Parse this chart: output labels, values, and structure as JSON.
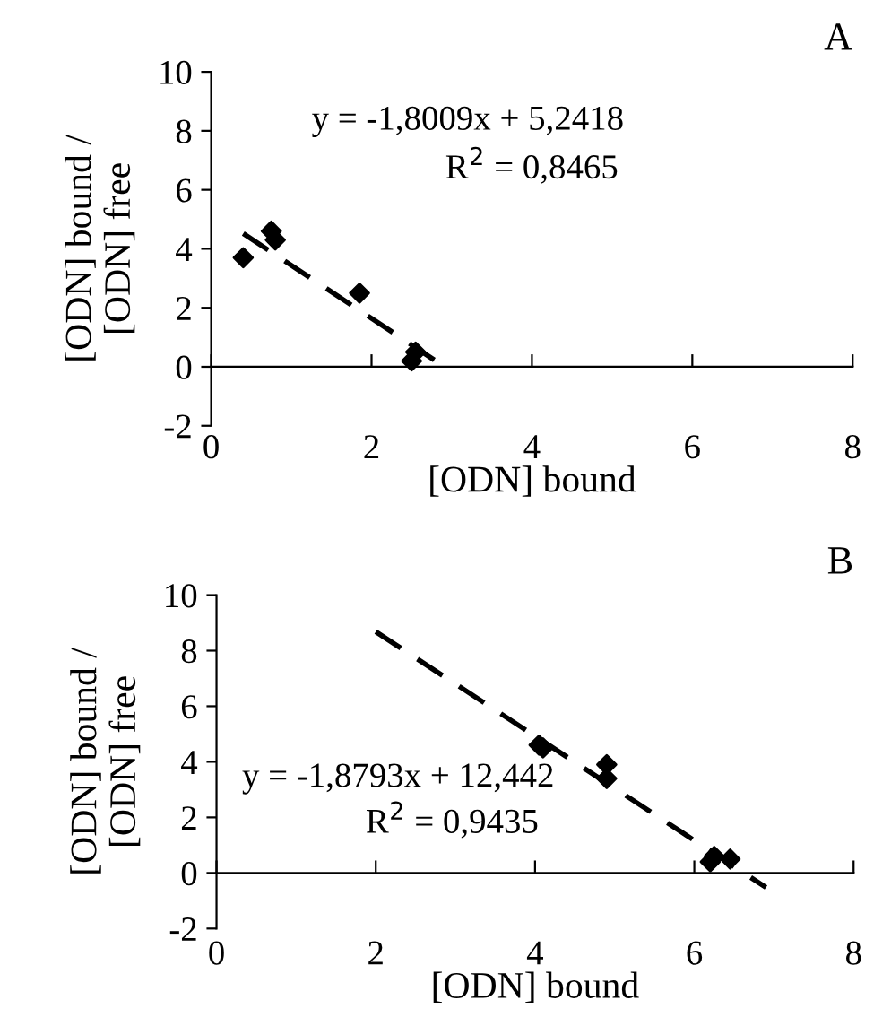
{
  "chart_data": [
    {
      "type": "scatter",
      "title": "A",
      "xlabel": "[ODN] bound",
      "ylabel": "[ODN] bound /\n[ODN] free",
      "annotations": [
        "y = -1,8009x + 5,2418",
        "R$^{2}$ = 0,8465"
      ],
      "xlim": [
        0,
        8
      ],
      "ylim": [
        -2,
        10
      ],
      "xticks": [
        0,
        2,
        4,
        6,
        8
      ],
      "yticks": [
        -2,
        0,
        2,
        4,
        6,
        8,
        10
      ],
      "grid": false,
      "legend": false,
      "marker": "diamond",
      "series": [
        {
          "color": "#000000",
          "x": [
            0.4,
            0.75,
            0.8,
            1.85,
            2.5,
            2.55
          ],
          "values": [
            3.7,
            4.6,
            4.3,
            2.5,
            0.2,
            0.5
          ]
        },
        {
          "type": "line",
          "line_style": "dashed",
          "marker": "none",
          "color": "#000000",
          "x": [
            0.4,
            2.95
          ],
          "values": [
            4.52,
            -0.07
          ]
        }
      ]
    },
    {
      "type": "scatter",
      "title": "B",
      "xlabel": "[ODN] bound",
      "ylabel": "[ODN] bound /\n[ODN] free",
      "annotations": [
        "y = -1,8793x + 12,442",
        "R$^{2}$ = 0,9435"
      ],
      "xlim": [
        0,
        8
      ],
      "ylim": [
        -2,
        10
      ],
      "xticks": [
        0,
        2,
        4,
        6,
        8
      ],
      "yticks": [
        -2,
        0,
        2,
        4,
        6,
        8,
        10
      ],
      "grid": false,
      "legend": false,
      "marker": "diamond",
      "series": [
        {
          "color": "#000000",
          "x": [
            4.05,
            4.1,
            4.9,
            4.9,
            6.2,
            6.25,
            6.45
          ],
          "values": [
            4.6,
            4.5,
            3.9,
            3.4,
            0.4,
            0.6,
            0.5
          ]
        },
        {
          "type": "line",
          "line_style": "dashed",
          "marker": "none",
          "color": "#000000",
          "x": [
            2.0,
            6.9
          ],
          "values": [
            8.68,
            -0.52
          ]
        }
      ]
    }
  ]
}
